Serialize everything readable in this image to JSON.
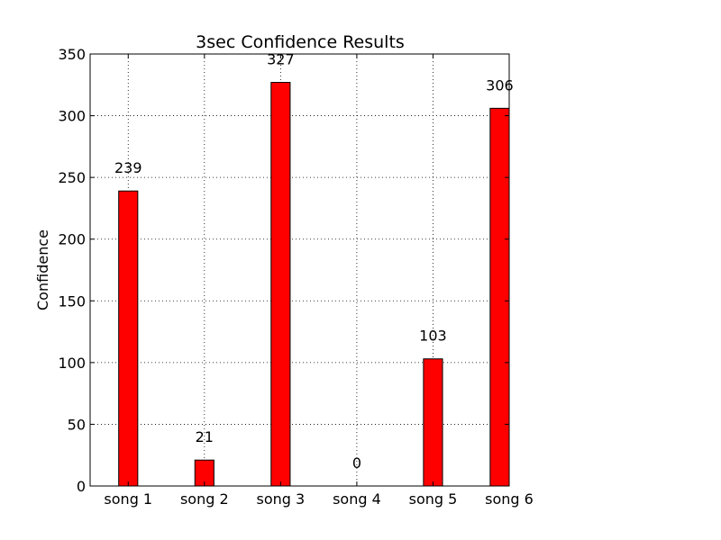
{
  "chart_data": {
    "type": "bar",
    "title": "3sec Confidence Results",
    "xlabel": "",
    "ylabel": "Confidence",
    "categories": [
      "song 1",
      "song 2",
      "song 3",
      "song 4",
      "song 5",
      "song 6"
    ],
    "values": [
      239,
      21,
      327,
      0,
      103,
      306
    ],
    "data_labels": [
      "239",
      "21",
      "327",
      "0",
      "103",
      "306"
    ],
    "ylim": [
      0,
      350
    ],
    "yticks": [
      0,
      50,
      100,
      150,
      200,
      250,
      300,
      350
    ],
    "ytick_labels": [
      "0",
      "50",
      "100",
      "150",
      "200",
      "250",
      "300",
      "350"
    ],
    "grid": true,
    "bar_color": "#ff0000",
    "edge_color": "#000000"
  }
}
